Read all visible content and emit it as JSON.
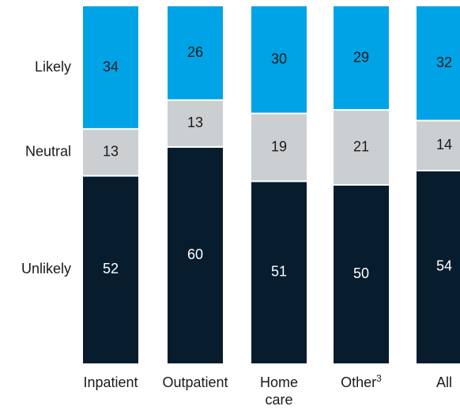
{
  "chart_data": {
    "type": "bar",
    "stacked": true,
    "orientation": "vertical",
    "categories": [
      "Inpatient",
      "Outpatient",
      "Home care",
      "Other",
      "All"
    ],
    "category_footnotes": [
      "",
      "",
      "",
      "3",
      ""
    ],
    "series": [
      {
        "name": "Unlikely",
        "values": [
          52,
          60,
          51,
          50,
          54
        ],
        "color": "#071d2e",
        "text_color": "#ffffff"
      },
      {
        "name": "Neutral",
        "values": [
          13,
          13,
          19,
          21,
          14
        ],
        "color": "#cbcfd2",
        "text_color": "#1a1a1a"
      },
      {
        "name": "Likely",
        "values": [
          34,
          26,
          30,
          29,
          32
        ],
        "color": "#00a3e6",
        "text_color": "#1a1a1a"
      }
    ],
    "title": "",
    "xlabel": "",
    "ylabel": "",
    "legend_placement": "left, as row labels",
    "grid": false
  }
}
